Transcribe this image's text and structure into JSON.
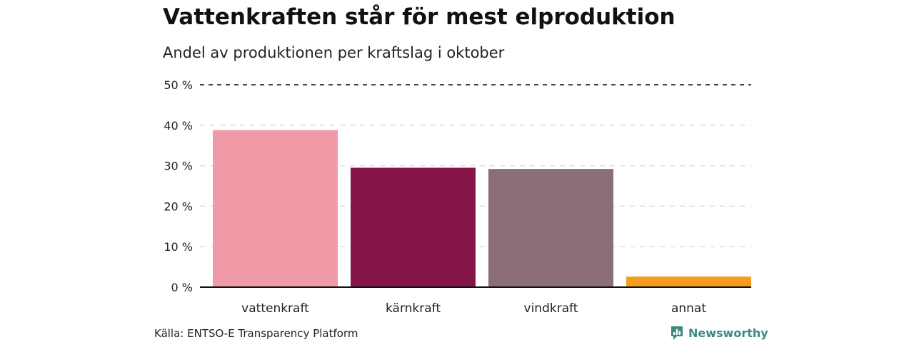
{
  "chart_data": {
    "type": "bar",
    "title": "Vattenkraften står för mest elproduktion",
    "subtitle": "Andel av produktionen per kraftslag i oktober",
    "categories": [
      "vattenkraft",
      "kärnkraft",
      "vindkraft",
      "annat"
    ],
    "values": [
      38.8,
      29.5,
      29.2,
      2.6
    ],
    "colors": [
      "#f09aa8",
      "#851548",
      "#8b6e77",
      "#f59e1d"
    ],
    "yunit": "%",
    "ylim": [
      0,
      50
    ],
    "yticks": [
      0,
      10,
      20,
      30,
      40,
      50
    ],
    "ytick_labels": [
      "0 %",
      "10 %",
      "20 %",
      "30 %",
      "40 %",
      "50 %"
    ],
    "grid": true,
    "xlabel": "",
    "ylabel": ""
  },
  "footer": {
    "source": "Källa: ENTSO-E Transparency Platform",
    "brand": "Newsworthy",
    "brand_icon": "newsworthy-logo-icon",
    "brand_color": "#3d8a80"
  }
}
